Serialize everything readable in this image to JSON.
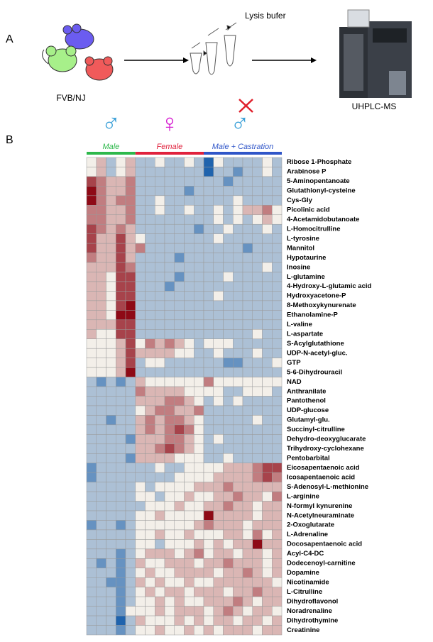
{
  "panel_a": {
    "label": "A",
    "mice_label": "FVB/NJ",
    "lysis_label": "Lysis bufer",
    "instrument_label": "UHPLC-MS"
  },
  "panel_b": {
    "label": "B",
    "color_scale": {
      "domain": [
        -3,
        0,
        4
      ],
      "colors": [
        "#1f63ad",
        "#f3efe9",
        "#8e0a16"
      ]
    },
    "groups": [
      {
        "symbol": "♂",
        "name": "Male",
        "color": "#2db84b",
        "symbol_color": "#3aa0d8"
      },
      {
        "symbol": "♀",
        "name": "Female",
        "color": "#e0213c",
        "symbol_color": "#d61fd1"
      },
      {
        "symbol": "♂",
        "name": "Male + Castration",
        "color": "#2f55c8",
        "symbol_color": "#3aa0d8"
      }
    ],
    "rows": [
      "Ribose 1-Phosphate",
      "Arabinose P",
      "5-Aminopentanoate",
      "Glutathionyl-cysteine",
      "Cys-Gly",
      "Picolinic acid",
      "4-Acetamidobutanoate",
      "L-Homocitrulline",
      "L-tyrosine",
      "Mannitol",
      "Hypotaurine",
      "Inosine",
      "L-glutamine",
      "4-Hydroxy-L-glutamic acid",
      "Hydroxyacetone-P",
      "8-Methoxykynurenate",
      "Ethanolamine-P",
      "L-valine",
      "L-aspartate",
      "S-Acylglutathione",
      "UDP-N-acetyl-gluc.",
      "GTP",
      "5-6-Dihydrouracil",
      "NAD",
      "Anthranilate",
      "Pantothenol",
      "UDP-glucose",
      "Glutamyl-glu.",
      "Succinyl-citrulline",
      "Dehydro-deoxyglucarate",
      "Trihydroxy-cyclohexane",
      "Pentobarbital",
      "Eicosapentaenoic acid",
      "Icosapentaenoic acid",
      "S-Adenosyl-L-methionine",
      "L-arginine",
      "N-formyl kynurenine",
      "N-Acetylneuraminate",
      "2-Oxoglutarate",
      "L-Adrenaline",
      "Docosapentaenoic acid",
      "Acyl-C4-DC",
      "Dodecenoyl-carnitine",
      "Dopamine",
      "Nicotinamide",
      "L-Citrulline",
      "Dihydroflavonol",
      "Noradrenaline",
      "Dihydrothymine",
      "Creatinine"
    ],
    "values": [
      [
        [
          0,
          1,
          -1,
          0,
          1
        ],
        [
          -1,
          -1,
          0,
          -1,
          -1,
          0,
          -1
        ],
        [
          -3,
          0,
          -1,
          -1,
          -1,
          -1,
          0,
          -1
        ]
      ],
      [
        [
          0,
          1,
          -1,
          0,
          1
        ],
        [
          -1,
          -1,
          -1,
          -1,
          -1,
          -1,
          -1
        ],
        [
          -3,
          -1,
          -1,
          -2,
          -1,
          -1,
          0,
          -1
        ]
      ],
      [
        [
          3,
          2,
          1,
          1,
          2
        ],
        [
          -1,
          -1,
          -1,
          -1,
          -1,
          -1,
          -1
        ],
        [
          -1,
          -1,
          -2,
          -1,
          -1,
          -1,
          -1,
          -1
        ]
      ],
      [
        [
          4,
          2,
          1,
          1,
          2
        ],
        [
          -1,
          -1,
          -1,
          -1,
          -1,
          -2,
          -1
        ],
        [
          -1,
          -1,
          -1,
          -1,
          -1,
          -1,
          -1,
          -1
        ]
      ],
      [
        [
          4,
          2,
          1,
          2,
          2
        ],
        [
          -1,
          -1,
          0,
          -1,
          -1,
          -1,
          -1
        ],
        [
          -1,
          -1,
          -1,
          0,
          -1,
          -1,
          -1,
          -1
        ]
      ],
      [
        [
          2,
          2,
          1,
          1,
          2
        ],
        [
          -1,
          -1,
          0,
          -1,
          -1,
          0,
          -1
        ],
        [
          -1,
          0,
          -1,
          0,
          1,
          1,
          2,
          0
        ]
      ],
      [
        [
          2,
          2,
          1,
          1,
          2
        ],
        [
          -1,
          -1,
          -1,
          -1,
          -1,
          -1,
          -1
        ],
        [
          -1,
          0,
          -1,
          0,
          -1,
          0,
          1,
          0
        ]
      ],
      [
        [
          3,
          2,
          1,
          2,
          1
        ],
        [
          -1,
          -1,
          -1,
          -1,
          -1,
          -1,
          -2
        ],
        [
          -1,
          -1,
          0,
          -1,
          -1,
          -1,
          0,
          -1
        ]
      ],
      [
        [
          3,
          1,
          1,
          3,
          1
        ],
        [
          0,
          -1,
          -1,
          -1,
          -1,
          -1,
          -1
        ],
        [
          -1,
          0,
          -1,
          -1,
          -1,
          -1,
          -1,
          -1
        ]
      ],
      [
        [
          3,
          1,
          1,
          3,
          1
        ],
        [
          2,
          -1,
          -1,
          -1,
          -1,
          -1,
          -1
        ],
        [
          -1,
          -1,
          -1,
          -1,
          -2,
          -1,
          -1,
          -1
        ]
      ],
      [
        [
          2,
          1,
          1,
          3,
          1
        ],
        [
          -1,
          -1,
          -1,
          -1,
          -2,
          -1,
          -1
        ],
        [
          -1,
          -1,
          -1,
          -1,
          -1,
          -1,
          -1,
          -1
        ]
      ],
      [
        [
          1,
          1,
          1,
          3,
          2
        ],
        [
          -1,
          -1,
          -1,
          -1,
          -1,
          -1,
          -1
        ],
        [
          -1,
          -1,
          -1,
          -1,
          -1,
          -1,
          0,
          -1
        ]
      ],
      [
        [
          1,
          1,
          0,
          3,
          3
        ],
        [
          -1,
          -1,
          -1,
          -1,
          -2,
          -1,
          -1
        ],
        [
          -1,
          -1,
          0,
          -1,
          -1,
          -1,
          -1,
          -1
        ]
      ],
      [
        [
          1,
          1,
          0,
          3,
          3
        ],
        [
          -1,
          -1,
          -1,
          -2,
          -1,
          -1,
          -1
        ],
        [
          -1,
          -1,
          -1,
          -1,
          -1,
          -1,
          -1,
          -1
        ]
      ],
      [
        [
          1,
          1,
          0,
          3,
          3
        ],
        [
          -1,
          -1,
          -1,
          -1,
          -1,
          -1,
          -1
        ],
        [
          -1,
          0,
          -1,
          -1,
          -1,
          -1,
          -1,
          -1
        ]
      ],
      [
        [
          1,
          1,
          0,
          3,
          4
        ],
        [
          -1,
          -1,
          -1,
          -1,
          -1,
          -1,
          -1
        ],
        [
          -1,
          -1,
          -1,
          -1,
          -1,
          -1,
          -1,
          -1
        ]
      ],
      [
        [
          1,
          1,
          0,
          4,
          4
        ],
        [
          -1,
          -1,
          -1,
          -1,
          -1,
          -1,
          -1
        ],
        [
          -1,
          -1,
          -1,
          -1,
          -1,
          -1,
          -1,
          -1
        ]
      ],
      [
        [
          1,
          1,
          1,
          3,
          3
        ],
        [
          -1,
          -1,
          -1,
          -1,
          -1,
          -1,
          -1
        ],
        [
          -1,
          -1,
          -1,
          -1,
          -1,
          -1,
          -1,
          -1
        ]
      ],
      [
        [
          1,
          0,
          0,
          3,
          3
        ],
        [
          -1,
          -1,
          -1,
          -1,
          -1,
          -1,
          -1
        ],
        [
          -1,
          -1,
          -1,
          -1,
          -1,
          0,
          -1,
          -1
        ]
      ],
      [
        [
          0,
          0,
          0,
          1,
          3
        ],
        [
          0,
          2,
          1,
          2,
          1,
          0,
          -1
        ],
        [
          0,
          0,
          0,
          -1,
          -1,
          -1,
          -1,
          -1
        ]
      ],
      [
        [
          0,
          0,
          0,
          1,
          3
        ],
        [
          1,
          1,
          1,
          1,
          0,
          0,
          -1
        ],
        [
          -1,
          0,
          -1,
          -1,
          -1,
          0,
          -1,
          -1
        ]
      ],
      [
        [
          0,
          0,
          0,
          1,
          3
        ],
        [
          -1,
          0,
          0,
          -1,
          -1,
          -1,
          -1
        ],
        [
          -1,
          -1,
          -2,
          -2,
          -1,
          -1,
          -1,
          0
        ]
      ],
      [
        [
          0,
          0,
          0,
          1,
          4
        ],
        [
          -1,
          -1,
          -1,
          -1,
          -1,
          -1,
          -1
        ],
        [
          -1,
          -1,
          -1,
          -1,
          -1,
          -1,
          -1,
          -1
        ]
      ],
      [
        [
          -1,
          -2,
          -1,
          -2,
          -1
        ],
        [
          1,
          0,
          0,
          0,
          0,
          0,
          0
        ],
        [
          2,
          0,
          0,
          0,
          0,
          0,
          0,
          0
        ]
      ],
      [
        [
          -1,
          -1,
          -1,
          -1,
          -1
        ],
        [
          2,
          1,
          1,
          1,
          1,
          0,
          0
        ],
        [
          0,
          0,
          -1,
          -1,
          0,
          0,
          0,
          -1
        ]
      ],
      [
        [
          -1,
          -1,
          -1,
          -1,
          -1
        ],
        [
          1,
          1,
          1,
          2,
          2,
          1,
          0
        ],
        [
          -1,
          0,
          -1,
          0,
          -1,
          -1,
          -1,
          -1
        ]
      ],
      [
        [
          -1,
          -1,
          -1,
          -1,
          -1
        ],
        [
          0,
          1,
          2,
          2,
          1,
          1,
          2
        ],
        [
          -1,
          -1,
          -1,
          -1,
          -1,
          -1,
          -1,
          -1
        ]
      ],
      [
        [
          -1,
          -1,
          -2,
          -1,
          -1
        ],
        [
          1,
          2,
          1,
          2,
          2,
          1,
          0
        ],
        [
          -1,
          -1,
          -1,
          -1,
          -1,
          0,
          -1,
          -1
        ]
      ],
      [
        [
          -1,
          -1,
          -1,
          -1,
          -1
        ],
        [
          1,
          2,
          1,
          2,
          3,
          2,
          0
        ],
        [
          -1,
          -1,
          -1,
          -1,
          -1,
          -1,
          -1,
          -1
        ]
      ],
      [
        [
          -1,
          -1,
          -1,
          -1,
          -2
        ],
        [
          1,
          1,
          1,
          2,
          2,
          1,
          0
        ],
        [
          -1,
          0,
          -1,
          -1,
          -1,
          -1,
          -1,
          -1
        ]
      ],
      [
        [
          -1,
          -1,
          -1,
          -1,
          -1
        ],
        [
          1,
          1,
          2,
          3,
          2,
          1,
          0
        ],
        [
          -1,
          -1,
          -1,
          -1,
          -1,
          -1,
          -1,
          -1
        ]
      ],
      [
        [
          -1,
          -1,
          -1,
          -1,
          -2
        ],
        [
          1,
          1,
          1,
          1,
          0,
          0,
          0
        ],
        [
          -1,
          -1,
          0,
          -1,
          -1,
          -1,
          -1,
          -1
        ]
      ],
      [
        [
          -2,
          -1,
          -1,
          -1,
          -1
        ],
        [
          -1,
          -1,
          0,
          -1,
          -1,
          0,
          0
        ],
        [
          0,
          0,
          1,
          1,
          1,
          2,
          3,
          3
        ]
      ],
      [
        [
          -2,
          -1,
          -1,
          -1,
          -1
        ],
        [
          -1,
          -1,
          -1,
          -1,
          0,
          0,
          0
        ],
        [
          0,
          1,
          1,
          1,
          1,
          2,
          3,
          2
        ]
      ],
      [
        [
          -1,
          -1,
          -1,
          -1,
          -1
        ],
        [
          0,
          -1,
          0,
          0,
          0,
          0,
          1
        ],
        [
          1,
          1,
          2,
          1,
          1,
          1,
          1,
          1
        ]
      ],
      [
        [
          -1,
          -1,
          -1,
          -1,
          -1
        ],
        [
          0,
          0,
          -1,
          0,
          0,
          1,
          0
        ],
        [
          0,
          1,
          1,
          2,
          1,
          1,
          0,
          2
        ]
      ],
      [
        [
          -1,
          -1,
          -1,
          -1,
          -1
        ],
        [
          -1,
          0,
          0,
          0,
          1,
          0,
          0
        ],
        [
          1,
          1,
          2,
          1,
          1,
          0,
          1,
          1
        ]
      ],
      [
        [
          -1,
          -1,
          -1,
          -1,
          -1
        ],
        [
          0,
          0,
          1,
          0,
          0,
          0,
          0
        ],
        [
          4,
          1,
          1,
          1,
          1,
          0,
          1,
          1
        ]
      ],
      [
        [
          -2,
          -1,
          -1,
          -2,
          -1
        ],
        [
          0,
          0,
          0,
          0,
          0,
          0,
          1
        ],
        [
          2,
          1,
          1,
          1,
          0,
          1,
          1,
          1
        ]
      ],
      [
        [
          -1,
          -1,
          -1,
          -1,
          -1
        ],
        [
          0,
          0,
          1,
          0,
          0,
          1,
          0
        ],
        [
          0,
          0,
          1,
          1,
          0,
          2,
          0,
          1
        ]
      ],
      [
        [
          -1,
          -1,
          -1,
          -1,
          -1
        ],
        [
          0,
          0,
          -1,
          0,
          0,
          0,
          1
        ],
        [
          0,
          1,
          0,
          1,
          1,
          4,
          1,
          1
        ]
      ],
      [
        [
          -1,
          -1,
          -1,
          -2,
          -1
        ],
        [
          0,
          1,
          1,
          1,
          0,
          1,
          2
        ],
        [
          0,
          1,
          1,
          0,
          1,
          1,
          0,
          1
        ]
      ],
      [
        [
          -1,
          -2,
          -1,
          -2,
          -1
        ],
        [
          1,
          0,
          0,
          1,
          1,
          1,
          0
        ],
        [
          1,
          1,
          2,
          1,
          1,
          1,
          0,
          1
        ]
      ],
      [
        [
          -1,
          -1,
          -1,
          -2,
          -1
        ],
        [
          0,
          1,
          0,
          0,
          1,
          1,
          1
        ],
        [
          1,
          0,
          1,
          1,
          2,
          1,
          0,
          1
        ]
      ],
      [
        [
          -1,
          -1,
          -2,
          -2,
          -1
        ],
        [
          1,
          0,
          1,
          0,
          0,
          1,
          0
        ],
        [
          0,
          1,
          1,
          1,
          1,
          1,
          1,
          0
        ]
      ],
      [
        [
          -1,
          -1,
          -1,
          -2,
          -1
        ],
        [
          0,
          1,
          0,
          1,
          1,
          0,
          1
        ],
        [
          1,
          1,
          0,
          1,
          1,
          2,
          1,
          1
        ]
      ],
      [
        [
          -1,
          -1,
          -1,
          -2,
          -1
        ],
        [
          0,
          0,
          1,
          0,
          1,
          0,
          0
        ],
        [
          1,
          1,
          1,
          2,
          1,
          0,
          1,
          1
        ]
      ],
      [
        [
          -1,
          -1,
          -1,
          -2,
          0
        ],
        [
          0,
          0,
          1,
          0,
          1,
          1,
          1
        ],
        [
          0,
          1,
          2,
          1,
          0,
          1,
          1,
          0
        ]
      ],
      [
        [
          -1,
          -1,
          -1,
          -3,
          -1
        ],
        [
          1,
          0,
          0,
          0,
          1,
          0,
          1
        ],
        [
          0,
          1,
          1,
          0,
          1,
          1,
          0,
          1
        ]
      ],
      [
        [
          -1,
          -1,
          -1,
          -2,
          -1
        ],
        [
          0,
          0,
          1,
          0,
          0,
          1,
          0
        ],
        [
          1,
          0,
          1,
          1,
          1,
          0,
          1,
          1
        ]
      ]
    ]
  }
}
